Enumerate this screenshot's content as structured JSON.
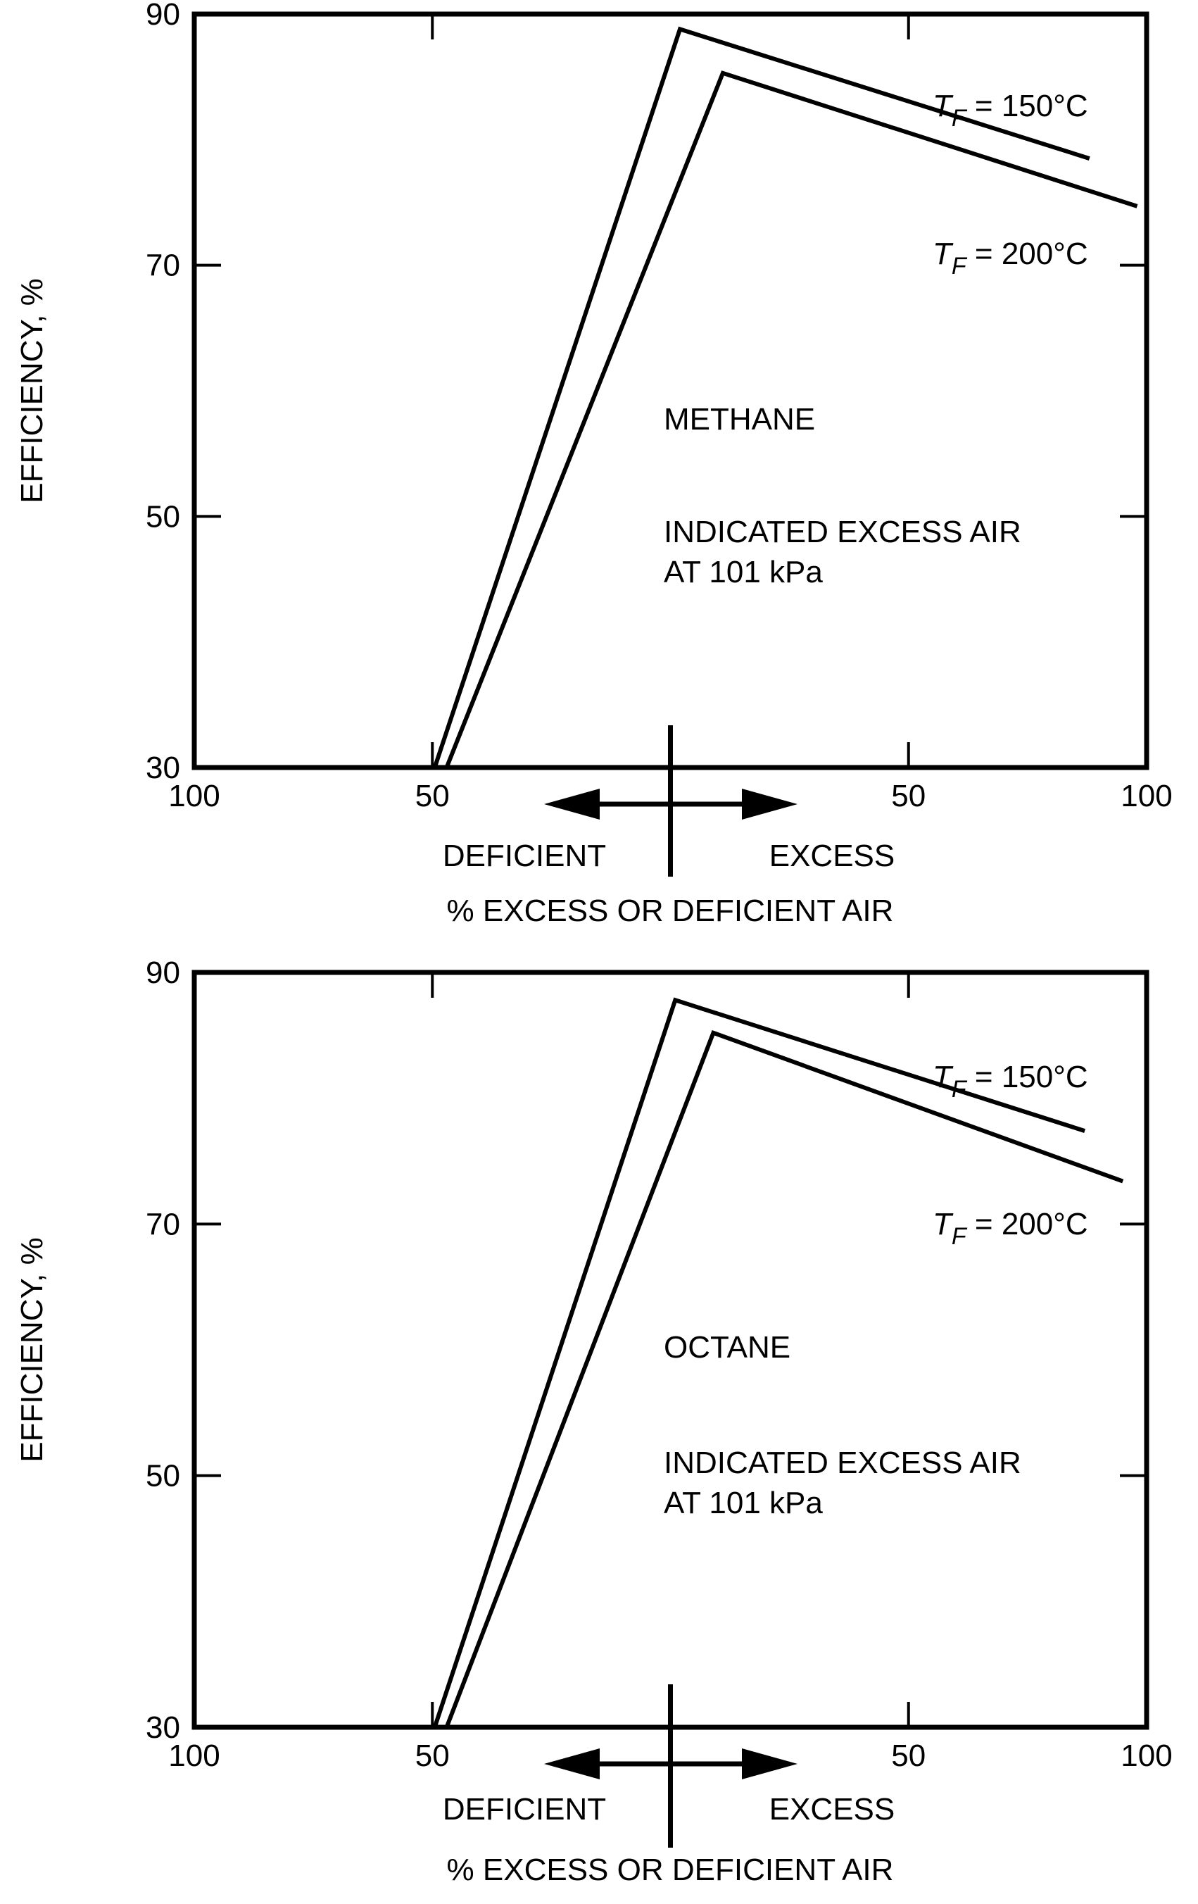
{
  "colors": {
    "ink": "#000000",
    "background": "#ffffff"
  },
  "chart_data": [
    {
      "type": "line",
      "panel_label": "METHANE",
      "note_line1": "INDICATED EXCESS AIR",
      "note_line2": "AT 101 kPa",
      "ylabel": "EFFICIENCY, %",
      "xlabel": "% EXCESS OR DEFICIENT AIR",
      "deficient_label": "DEFICIENT",
      "excess_label": "EXCESS",
      "ylim": [
        30,
        90
      ],
      "xlim": [
        -100,
        100
      ],
      "xticks": [
        -100,
        -50,
        0,
        50,
        100
      ],
      "xtick_labels": [
        "100",
        "50",
        "",
        "50",
        "100"
      ],
      "yticks": [
        30,
        50,
        70,
        90
      ],
      "ytick_labels": [
        "30",
        "50",
        "70",
        "90"
      ],
      "grid": false,
      "series": [
        {
          "name": "T_F = 150°C",
          "label_main": "T",
          "label_sub": "F",
          "label_rest": " = 150°C",
          "x": [
            -49.5,
            2,
            88
          ],
          "y": [
            30,
            88.8,
            78.5
          ]
        },
        {
          "name": "T_F = 200°C",
          "label_main": "T",
          "label_sub": "F",
          "label_rest": " = 200°C",
          "x": [
            -47,
            11,
            98
          ],
          "y": [
            30,
            85.3,
            74.7
          ]
        }
      ]
    },
    {
      "type": "line",
      "panel_label": "OCTANE",
      "note_line1": "INDICATED EXCESS AIR",
      "note_line2": "AT 101 kPa",
      "ylabel": "EFFICIENCY, %",
      "xlabel": "% EXCESS OR DEFICIENT AIR",
      "deficient_label": "DEFICIENT",
      "excess_label": "EXCESS",
      "ylim": [
        30,
        90
      ],
      "xlim": [
        -100,
        100
      ],
      "xticks": [
        -100,
        -50,
        0,
        50,
        100
      ],
      "xtick_labels": [
        "100",
        "50",
        "",
        "50",
        "100"
      ],
      "yticks": [
        30,
        50,
        70,
        90
      ],
      "ytick_labels": [
        "30",
        "50",
        "70",
        "90"
      ],
      "grid": false,
      "series": [
        {
          "name": "T_F = 150°C",
          "label_main": "T",
          "label_sub": "F",
          "label_rest": " = 150°C",
          "x": [
            -49.5,
            1,
            87
          ],
          "y": [
            30,
            87.8,
            77.4
          ]
        },
        {
          "name": "T_F = 200°C",
          "label_main": "T",
          "label_sub": "F",
          "label_rest": " = 200°C",
          "x": [
            -47,
            9,
            95
          ],
          "y": [
            30,
            85.2,
            73.4
          ]
        }
      ]
    }
  ]
}
